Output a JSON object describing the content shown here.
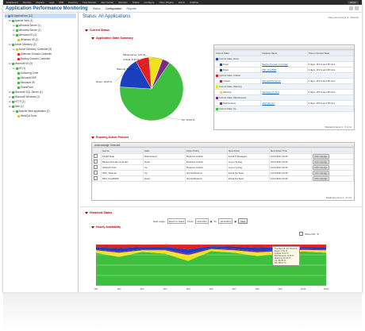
{
  "topnav": {
    "items": [
      "Dashboard",
      "Devices",
      "Reports",
      "Logs",
      "MIB",
      "Inventory",
      "Flow Monitor",
      "Alert Center",
      "Monitors",
      "Global",
      "Configure",
      "Other Plugins",
      "Admin",
      "AddOns"
    ],
    "user": "admin"
  },
  "header": {
    "app_title": "Application Performance Monitoring",
    "tabs": [
      "Status",
      "Configuration",
      "Reports"
    ],
    "active_tab": "Configuration"
  },
  "sidebar": {
    "items": [
      {
        "label": "All Applications (11)",
        "color": "#3a7bd5",
        "indent": 0,
        "selected": true
      },
      {
        "label": "Apache Web (1)",
        "color": "#3ab53a",
        "indent": 1
      },
      {
        "label": "Windows Server (1)",
        "color": "#3ab53a",
        "indent": 2
      },
      {
        "label": "Windows Server (1)",
        "color": "#3ab53a",
        "indent": 2
      },
      {
        "label": "Windows IIS (1)",
        "color": "#3ab53a",
        "indent": 2
      },
      {
        "label": "Windows IIS (1)",
        "color": "#d9c21c",
        "indent": 3
      },
      {
        "label": "Active Directory (2)",
        "color": "#3ab53a",
        "indent": 1
      },
      {
        "label": "Active Directory Controller (5)",
        "color": "#d9c21c",
        "indent": 2
      },
      {
        "label": "Alternate Domain Controller",
        "color": "#e02020",
        "indent": 3
      },
      {
        "label": "Backup Domain Controller",
        "color": "#e02020",
        "indent": 3
      },
      {
        "label": "Microsoft IIS (3)",
        "color": "#3ab53a",
        "indent": 1
      },
      {
        "label": "IIS (1)",
        "color": "#3ab53a",
        "indent": 2
      },
      {
        "label": "Authoring Onee",
        "color": "#3ab53a",
        "indent": 3
      },
      {
        "label": "Microsoft ASP",
        "color": "#3ab53a",
        "indent": 3
      },
      {
        "label": "Microsoft IIS",
        "color": "#3ab53a",
        "indent": 3
      },
      {
        "label": "SharePoint",
        "color": "#3ab53a",
        "indent": 3
      },
      {
        "label": "Microsoft SQL Server (1)",
        "color": "#3ab53a",
        "indent": 1
      },
      {
        "label": "Microsoft Windows (1)",
        "color": "#3ab53a",
        "indent": 1
      },
      {
        "label": "HTTP (1)",
        "color": "#3ab53a",
        "indent": 1
      },
      {
        "label": "Web (1)",
        "color": "#3ab53a",
        "indent": 1
      },
      {
        "label": "Apache Web application (1)",
        "color": "#3ab53a",
        "indent": 2
      },
      {
        "label": "Web/QA Tools",
        "color": "#d9c21c",
        "indent": 3
      }
    ]
  },
  "main": {
    "title": "Status: All Applications",
    "favorite": "Save As Favorite",
    "refresh": "Refresh"
  },
  "current_status": {
    "label": "Current Status",
    "chart_label": "Application State Summary"
  },
  "pie": {
    "slices": [
      {
        "label": "Up",
        "value": 79.93,
        "display": "Up: 79.93 %",
        "color": "#3fbf3f"
      },
      {
        "label": "Down",
        "value": 19.05,
        "display": "Down: 19.05 %",
        "color": "#1a3fbf"
      },
      {
        "label": "Critical",
        "value": 8.33,
        "display": "Critical: 8.33 %",
        "color": "#e02020"
      },
      {
        "label": "Warning",
        "value": 8.33,
        "display": "Warning: 8.33 %",
        "color": "#f2e21c"
      },
      {
        "label": "Maintenance",
        "value": 4.67,
        "display": "Maintenance: 4.67 %",
        "color": "#7a2a8a"
      }
    ]
  },
  "state_table": {
    "headers": [
      "Current State",
      "Instance Name",
      "Time in Current State"
    ],
    "groups": [
      {
        "label": "Current State: Down",
        "color": "#1a3fbf",
        "rows": [
          [
            "Down",
            "Backup Domain Controller",
            "0 days, 18 hrs and 38 mins"
          ],
          [
            "Down",
            "MW_FreeBSD",
            "0 days, 18 hrs and 38 mins"
          ]
        ]
      },
      {
        "label": "Current State: Critical",
        "color": "#e02020",
        "rows": [
          [
            "Critical",
            "WindowsIIS Server",
            "0 days, 18 hrs and 38 mins"
          ]
        ]
      },
      {
        "label": "Current State: Warning",
        "color": "#f2e21c",
        "rows": [
          [
            "Warning",
            "Windows IIS Test",
            "0 days, 18 hrs and 38 mins"
          ]
        ]
      },
      {
        "label": "Current State: Maintenance",
        "color": "#7a2a8a",
        "rows": [
          [
            "Maintenance",
            "Alternate DC",
            "0 days, 18 hrs and 38 mins"
          ]
        ]
      },
      {
        "label": "Current State: Up",
        "color": "#3fbf3f",
        "rows": []
      }
    ],
    "footer": "Displaying items 1 - 5 of 11"
  },
  "action_policies": {
    "title": "Running Action Policies",
    "toolbar": "Acknowledge Selected",
    "headers": [
      "",
      "Source",
      "State",
      "Action Policy",
      "Next Action",
      "Next Action Time",
      ""
    ],
    "rows": [
      [
        "",
        "Fbsd8 State",
        "Maintenance",
        "Business Critical",
        "Email IT Managers",
        "12/11/2012 10:46",
        "Acknowledge"
      ],
      [
        "",
        "Backup Domain Controller",
        "Down",
        "Business Critical",
        "Log to Syslog",
        "12/11/2012 10:46",
        "Acknowledge"
      ],
      [
        "",
        "Web/QA Tools",
        "Up",
        "Business Critical",
        "Log to Syslog",
        "12/11/2012 10:46",
        "Acknowledge"
      ],
      [
        "",
        "RNX_WebLab",
        "Up",
        "QA Notifications",
        "Email QA Team",
        "12/11/2012 10:46",
        "Acknowledge"
      ],
      [
        "",
        "RNX_FreeBSD8",
        "Down",
        "QA Notifications",
        "Email QA Team",
        "12/11/2012 10:46",
        "Acknowledge"
      ]
    ],
    "footer": "Displaying items 1 - 5 of 5"
  },
  "historical": {
    "title": "Historical Status",
    "range_label": "Date range:",
    "range_value": "Month To Date",
    "from_label": "From:",
    "from_value": "12/1/2012",
    "to_label": "To:",
    "to_value": "12/11/2012",
    "view_label": "View",
    "sub_title": "Hourly Availability",
    "show_all": "Show N/A",
    "legend": [
      {
        "label": "Unknown",
        "color": "#bdbdbd"
      },
      {
        "label": "Down",
        "color": "#1a3fbf"
      },
      {
        "label": "Maintenance",
        "color": "#7a2a8a"
      },
      {
        "label": "Warning",
        "color": "#f2e21c"
      },
      {
        "label": "Up",
        "color": "#3fbf3f"
      },
      {
        "label": "N/A",
        "color": "#e02020"
      }
    ],
    "tooltip": [
      "Tue Dec 04, 19: 54.04 %",
      "Down: 2.91 %",
      "Critical: 5.21 %",
      "Maintenance: 0.00 %",
      "Warning: 10.20 %",
      "Up: 80.00 %",
      "NA: 80.07 %"
    ]
  },
  "chart_data": {
    "type": "area",
    "title": "Hourly Availability",
    "xlabel": "",
    "ylabel": "",
    "ylim": [
      0,
      100
    ],
    "categories": [
      "12/1",
      "12/2",
      "12/3",
      "12/4",
      "12/5",
      "12/6",
      "12/7",
      "12/8",
      "12/9",
      "12/10",
      "12/11"
    ],
    "series": [
      {
        "name": "Up",
        "values": [
          80,
          70,
          82,
          78,
          60,
          84,
          80,
          72,
          78,
          83,
          80
        ]
      },
      {
        "name": "Warning",
        "values": [
          6,
          10,
          4,
          8,
          14,
          5,
          6,
          9,
          6,
          4,
          6
        ]
      },
      {
        "name": "Maintenance",
        "values": [
          2,
          3,
          2,
          2,
          4,
          2,
          3,
          3,
          2,
          2,
          2
        ]
      },
      {
        "name": "Down",
        "values": [
          5,
          8,
          6,
          6,
          10,
          5,
          6,
          8,
          7,
          5,
          6
        ]
      },
      {
        "name": "N/A",
        "values": [
          7,
          9,
          6,
          6,
          12,
          4,
          5,
          8,
          7,
          6,
          6
        ]
      }
    ]
  }
}
